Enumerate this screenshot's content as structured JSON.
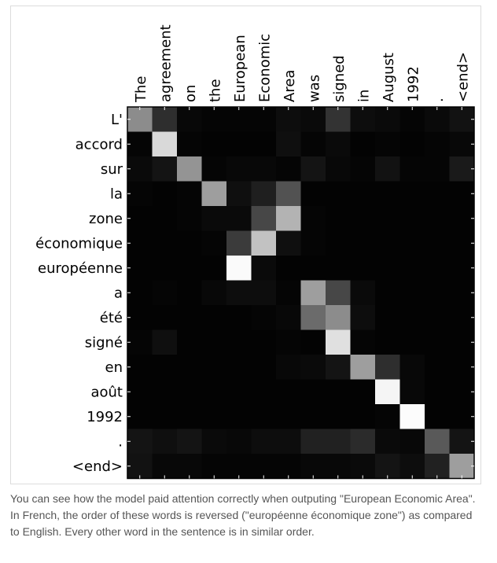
{
  "chart_data": {
    "type": "heatmap",
    "title": "",
    "xlabel": "",
    "ylabel": "",
    "x_tick_labels": [
      "The",
      "agreement",
      "on",
      "the",
      "European",
      "Economic",
      "Area",
      "was",
      "signed",
      "in",
      "August",
      "1992",
      ".",
      "<end>"
    ],
    "y_tick_labels": [
      "L'",
      "accord",
      "sur",
      "la",
      "zone",
      "économique",
      "européenne",
      "a",
      "été",
      "signé",
      "en",
      "août",
      "1992",
      ".",
      "<end>"
    ],
    "colormap": "gray",
    "value_range": [
      0,
      1
    ],
    "values": [
      [
        0.55,
        0.18,
        0.03,
        0.02,
        0.02,
        0.02,
        0.05,
        0.04,
        0.2,
        0.05,
        0.04,
        0.02,
        0.04,
        0.07
      ],
      [
        0.02,
        0.85,
        0.02,
        0.01,
        0.01,
        0.01,
        0.06,
        0.02,
        0.04,
        0.01,
        0.02,
        0.01,
        0.02,
        0.03
      ],
      [
        0.04,
        0.08,
        0.58,
        0.02,
        0.03,
        0.03,
        0.02,
        0.08,
        0.03,
        0.02,
        0.07,
        0.02,
        0.02,
        0.1
      ],
      [
        0.02,
        0.01,
        0.02,
        0.62,
        0.06,
        0.12,
        0.32,
        0.01,
        0.01,
        0.01,
        0.01,
        0.01,
        0.01,
        0.01
      ],
      [
        0.01,
        0.01,
        0.02,
        0.04,
        0.04,
        0.28,
        0.7,
        0.02,
        0.01,
        0.01,
        0.01,
        0.01,
        0.01,
        0.01
      ],
      [
        0.01,
        0.01,
        0.01,
        0.02,
        0.23,
        0.76,
        0.06,
        0.02,
        0.01,
        0.01,
        0.01,
        0.01,
        0.01,
        0.01
      ],
      [
        0.01,
        0.01,
        0.01,
        0.01,
        0.98,
        0.04,
        0.01,
        0.01,
        0.01,
        0.01,
        0.01,
        0.01,
        0.01,
        0.01
      ],
      [
        0.01,
        0.02,
        0.01,
        0.03,
        0.05,
        0.05,
        0.02,
        0.62,
        0.28,
        0.04,
        0.01,
        0.01,
        0.01,
        0.01
      ],
      [
        0.01,
        0.01,
        0.01,
        0.01,
        0.01,
        0.02,
        0.03,
        0.42,
        0.55,
        0.05,
        0.01,
        0.01,
        0.01,
        0.01
      ],
      [
        0.02,
        0.06,
        0.01,
        0.01,
        0.01,
        0.01,
        0.02,
        0.01,
        0.88,
        0.02,
        0.01,
        0.01,
        0.01,
        0.01
      ],
      [
        0.01,
        0.01,
        0.01,
        0.01,
        0.01,
        0.01,
        0.03,
        0.04,
        0.08,
        0.62,
        0.18,
        0.03,
        0.01,
        0.01
      ],
      [
        0.01,
        0.01,
        0.01,
        0.01,
        0.01,
        0.01,
        0.01,
        0.01,
        0.01,
        0.01,
        0.96,
        0.03,
        0.01,
        0.01
      ],
      [
        0.01,
        0.01,
        0.01,
        0.01,
        0.01,
        0.01,
        0.01,
        0.01,
        0.01,
        0.01,
        0.02,
        0.99,
        0.01,
        0.01
      ],
      [
        0.08,
        0.06,
        0.08,
        0.04,
        0.03,
        0.05,
        0.05,
        0.13,
        0.13,
        0.17,
        0.04,
        0.03,
        0.35,
        0.08
      ],
      [
        0.07,
        0.03,
        0.03,
        0.02,
        0.02,
        0.02,
        0.02,
        0.03,
        0.03,
        0.04,
        0.08,
        0.05,
        0.13,
        0.62
      ]
    ]
  },
  "caption": {
    "text": "You can see how the model paid attention correctly when outputing \"European Economic Area\". In French, the order of these words is reversed (\"européenne économique zone\") as compared to English. Every other word in the sentence is in similar order."
  }
}
